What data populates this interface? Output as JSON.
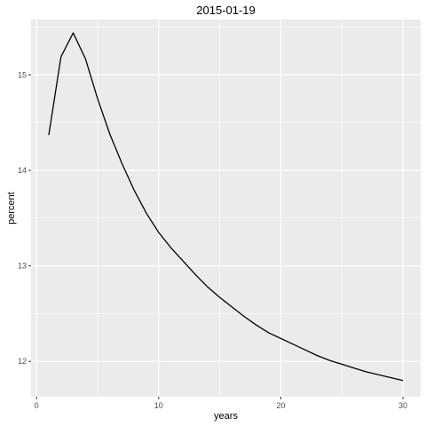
{
  "chart_data": {
    "type": "line",
    "title": "2015-01-19",
    "xlabel": "years",
    "ylabel": "percent",
    "xlim": [
      -0.45,
      31.45
    ],
    "ylim": [
      11.63,
      15.58
    ],
    "x_ticks": [
      0,
      10,
      20,
      30
    ],
    "y_ticks": [
      12,
      13,
      14,
      15
    ],
    "grid": true,
    "background": "#ebebeb",
    "grid_color": "#ffffff",
    "line_color": "#000000",
    "series": [
      {
        "x": [
          1,
          2,
          3,
          4,
          5,
          6,
          7,
          8,
          9,
          10,
          11,
          12,
          13,
          14,
          15,
          16,
          17,
          18,
          19,
          20,
          21,
          22,
          23,
          24,
          25,
          26,
          27,
          28,
          29,
          30
        ],
        "values": [
          14.37,
          15.19,
          15.44,
          15.17,
          14.75,
          14.38,
          14.07,
          13.79,
          13.55,
          13.35,
          13.19,
          13.05,
          12.91,
          12.78,
          12.67,
          12.57,
          12.47,
          12.38,
          12.3,
          12.24,
          12.18,
          12.12,
          12.06,
          12.01,
          11.97,
          11.93,
          11.89,
          11.86,
          11.83,
          11.8
        ]
      }
    ]
  }
}
